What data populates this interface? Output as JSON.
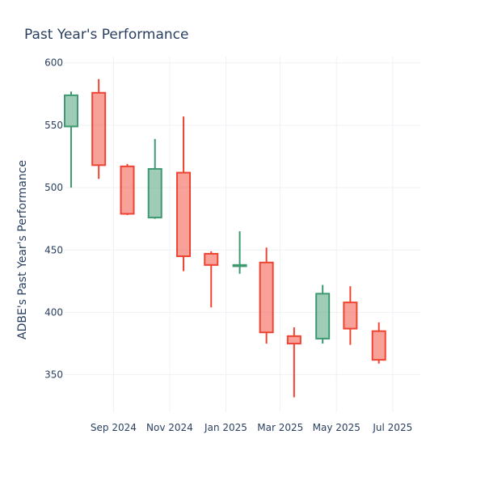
{
  "chart_data": {
    "type": "candlestick",
    "title": "Past Year's Performance",
    "xlabel": "",
    "ylabel": "ADBE's Past Year's Performance",
    "ylim": [
      320,
      605
    ],
    "y_ticks": [
      350,
      400,
      450,
      500,
      550,
      600
    ],
    "x_ticks": [
      {
        "date": "2024-09-01",
        "label": "Sep 2024"
      },
      {
        "date": "2024-11-01",
        "label": "Nov 2024"
      },
      {
        "date": "2025-01-01",
        "label": "Jan 2025"
      },
      {
        "date": "2025-03-01",
        "label": "Mar 2025"
      },
      {
        "date": "2025-05-01",
        "label": "May 2025"
      },
      {
        "date": "2025-07-01",
        "label": "Jul 2025"
      }
    ],
    "x_range": [
      "2024-07-10",
      "2025-07-31"
    ],
    "grid": true,
    "increasing_color": "#3d9970",
    "decreasing_color": "#ef4433",
    "candles": [
      {
        "date": "2024-07-17",
        "open": 549,
        "high": 577,
        "low": 500,
        "close": 574
      },
      {
        "date": "2024-08-16",
        "open": 576,
        "high": 587,
        "low": 507,
        "close": 518
      },
      {
        "date": "2024-09-16",
        "open": 517,
        "high": 519,
        "low": 478,
        "close": 479
      },
      {
        "date": "2024-10-16",
        "open": 476,
        "high": 539,
        "low": 475,
        "close": 515
      },
      {
        "date": "2024-11-16",
        "open": 512,
        "high": 557,
        "low": 433,
        "close": 445
      },
      {
        "date": "2024-12-16",
        "open": 447,
        "high": 449,
        "low": 404,
        "close": 438
      },
      {
        "date": "2025-01-16",
        "open": 437,
        "high": 465,
        "low": 431,
        "close": 438
      },
      {
        "date": "2025-02-14",
        "open": 440,
        "high": 452,
        "low": 375,
        "close": 384
      },
      {
        "date": "2025-03-16",
        "open": 381,
        "high": 388,
        "low": 332,
        "close": 375
      },
      {
        "date": "2025-04-16",
        "open": 379,
        "high": 422,
        "low": 375,
        "close": 415
      },
      {
        "date": "2025-05-16",
        "open": 408,
        "high": 421,
        "low": 374,
        "close": 387
      },
      {
        "date": "2025-06-16",
        "open": 385,
        "high": 392,
        "low": 359,
        "close": 362
      }
    ]
  }
}
